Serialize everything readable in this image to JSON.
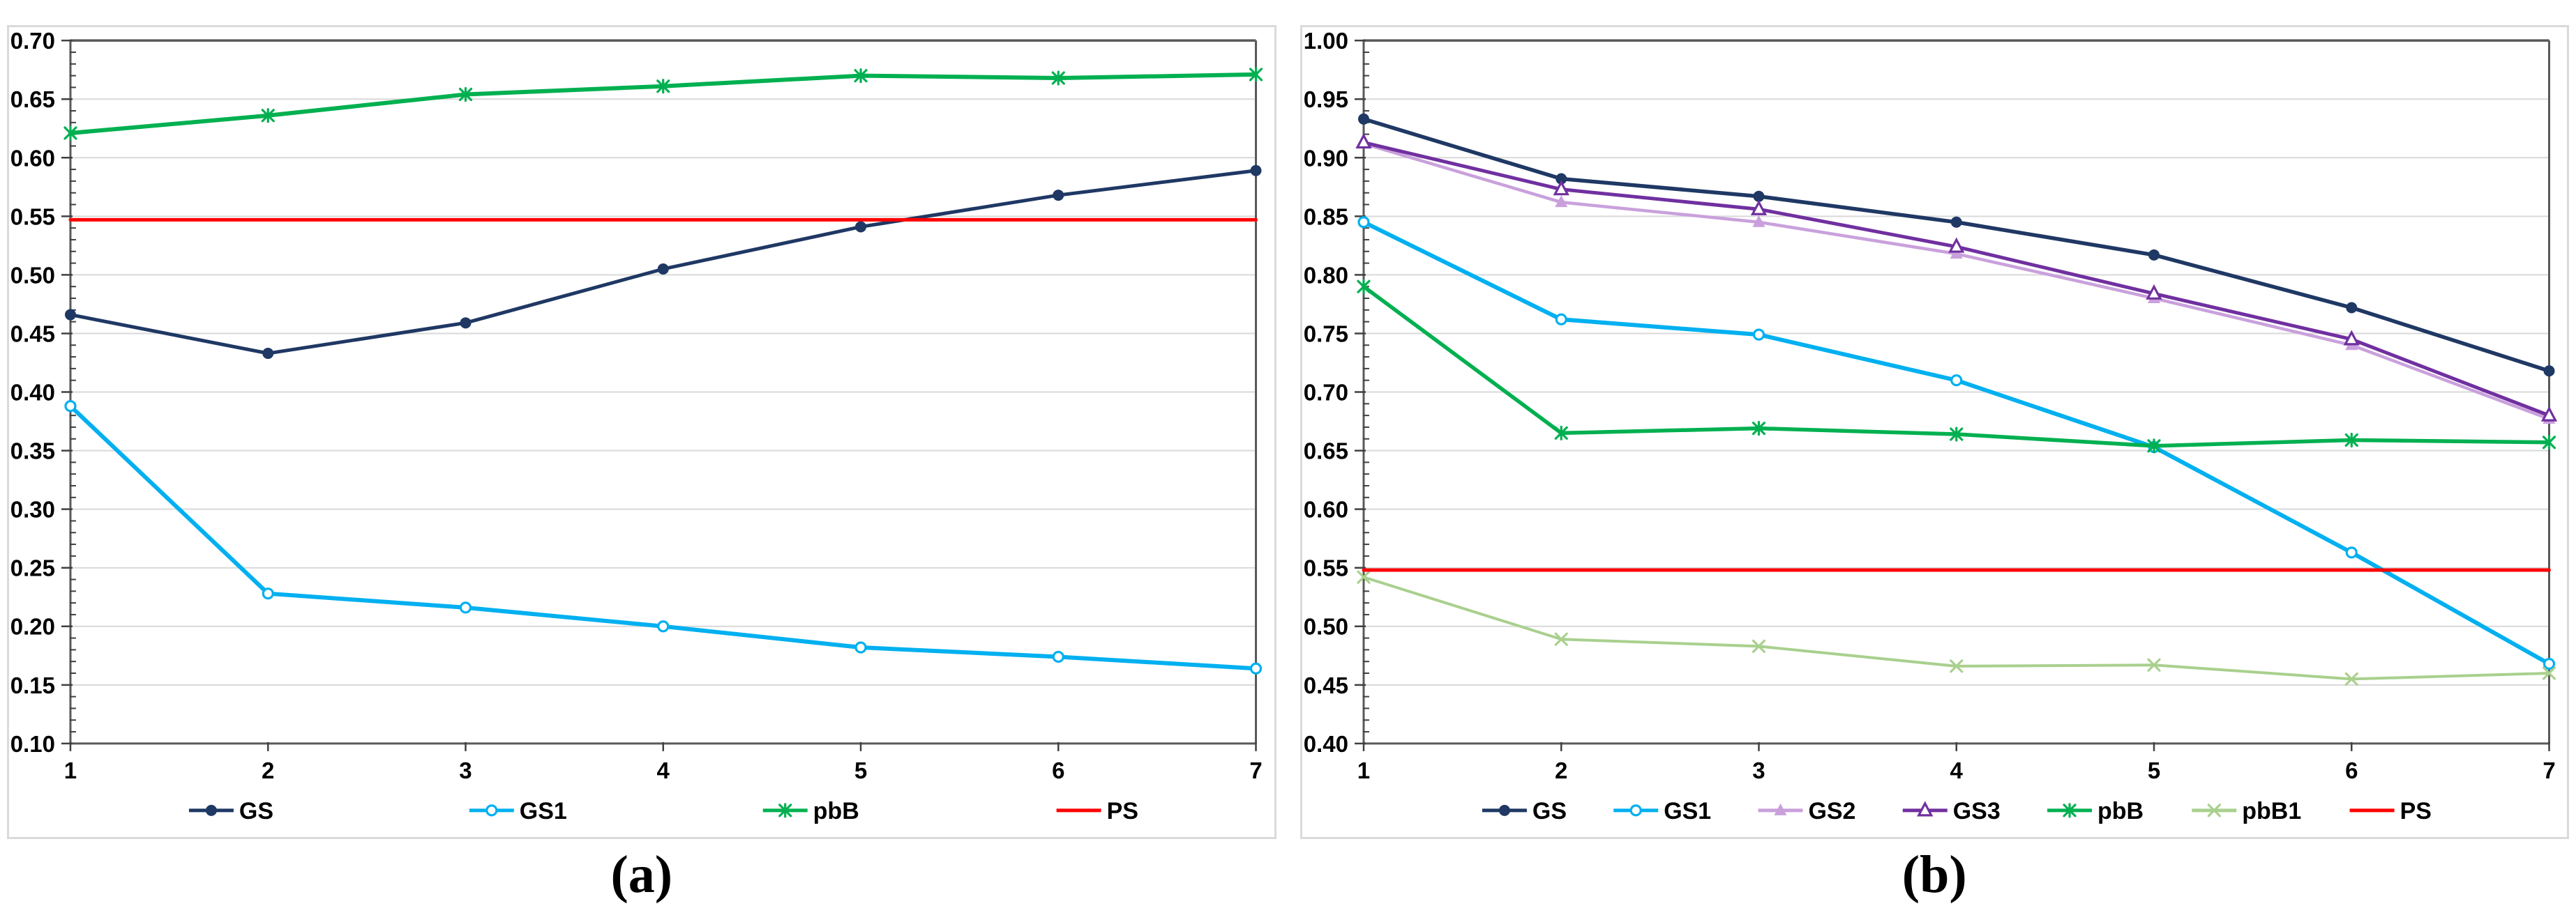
{
  "figure": {
    "caption_a": "(a)",
    "caption_b": "(b)"
  },
  "colors": {
    "navy": "#1F3864",
    "cyan": "#00B0F0",
    "green": "#00B050",
    "light_green": "#A9D08E",
    "purple": "#7030A0",
    "light_violet": "#C9A0DC",
    "red": "#FF0000",
    "gridline": "#D9D9D9",
    "frame": "#595959",
    "tick": "#404040",
    "panel_border": "#DADADA",
    "background": "#FFFFFF",
    "text": "#000000"
  },
  "chart_data": [
    {
      "id": "a",
      "type": "line",
      "title": "",
      "xlabel": "",
      "ylabel": "",
      "x": [
        1,
        2,
        3,
        4,
        5,
        6,
        7
      ],
      "ylim": [
        0.1,
        0.7
      ],
      "ytick_step": 0.05,
      "ytick_minor_step": 0.01,
      "ytick_decimals": 2,
      "grid": "horizontal",
      "legend_position": "bottom",
      "series": [
        {
          "name": "GS",
          "color": "#1F3864",
          "marker": "circle-filled",
          "line_width": 5,
          "values": [
            0.466,
            0.433,
            0.459,
            0.505,
            0.541,
            0.568,
            0.589
          ]
        },
        {
          "name": "GS1",
          "color": "#00B0F0",
          "marker": "circle-open",
          "line_width": 6,
          "values": [
            0.388,
            0.228,
            0.216,
            0.2,
            0.182,
            0.174,
            0.164
          ]
        },
        {
          "name": "pbB",
          "color": "#00B050",
          "marker": "asterisk",
          "line_width": 6,
          "values": [
            0.621,
            0.636,
            0.654,
            0.661,
            0.67,
            0.668,
            0.671
          ]
        },
        {
          "name": "PS",
          "color": "#FF0000",
          "marker": "none",
          "line_width": 5,
          "values": [
            0.547,
            0.547,
            0.547,
            0.547,
            0.547,
            0.547,
            0.547
          ]
        }
      ]
    },
    {
      "id": "b",
      "type": "line",
      "title": "",
      "xlabel": "",
      "ylabel": "",
      "x": [
        1,
        2,
        3,
        4,
        5,
        6,
        7
      ],
      "ylim": [
        0.4,
        1.0
      ],
      "ytick_step": 0.05,
      "ytick_minor_step": 0.01,
      "ytick_decimals": 2,
      "grid": "horizontal",
      "legend_position": "bottom",
      "series": [
        {
          "name": "GS",
          "color": "#1F3864",
          "marker": "circle-filled",
          "line_width": 5.5,
          "values": [
            0.933,
            0.882,
            0.867,
            0.845,
            0.817,
            0.772,
            0.718
          ]
        },
        {
          "name": "GS1",
          "color": "#00B0F0",
          "marker": "circle-open",
          "line_width": 6,
          "values": [
            0.845,
            0.762,
            0.749,
            0.71,
            0.653,
            0.563,
            0.468
          ]
        },
        {
          "name": "GS2",
          "color": "#C9A0DC",
          "marker": "triangle-filled",
          "line_width": 4.5,
          "values": [
            0.912,
            0.862,
            0.845,
            0.818,
            0.78,
            0.74,
            0.677
          ]
        },
        {
          "name": "GS3",
          "color": "#7030A0",
          "marker": "triangle-open",
          "line_width": 5,
          "values": [
            0.913,
            0.873,
            0.856,
            0.824,
            0.784,
            0.745,
            0.68
          ]
        },
        {
          "name": "pbB",
          "color": "#00B050",
          "marker": "asterisk",
          "line_width": 5.5,
          "values": [
            0.79,
            0.665,
            0.669,
            0.664,
            0.654,
            0.659,
            0.657
          ]
        },
        {
          "name": "pbB1",
          "color": "#A9D08E",
          "marker": "x-cross",
          "line_width": 4,
          "values": [
            0.542,
            0.489,
            0.483,
            0.466,
            0.467,
            0.455,
            0.46
          ]
        },
        {
          "name": "PS",
          "color": "#FF0000",
          "marker": "none",
          "line_width": 5,
          "values": [
            0.548,
            0.548,
            0.548,
            0.548,
            0.548,
            0.548,
            0.548
          ]
        }
      ]
    }
  ]
}
